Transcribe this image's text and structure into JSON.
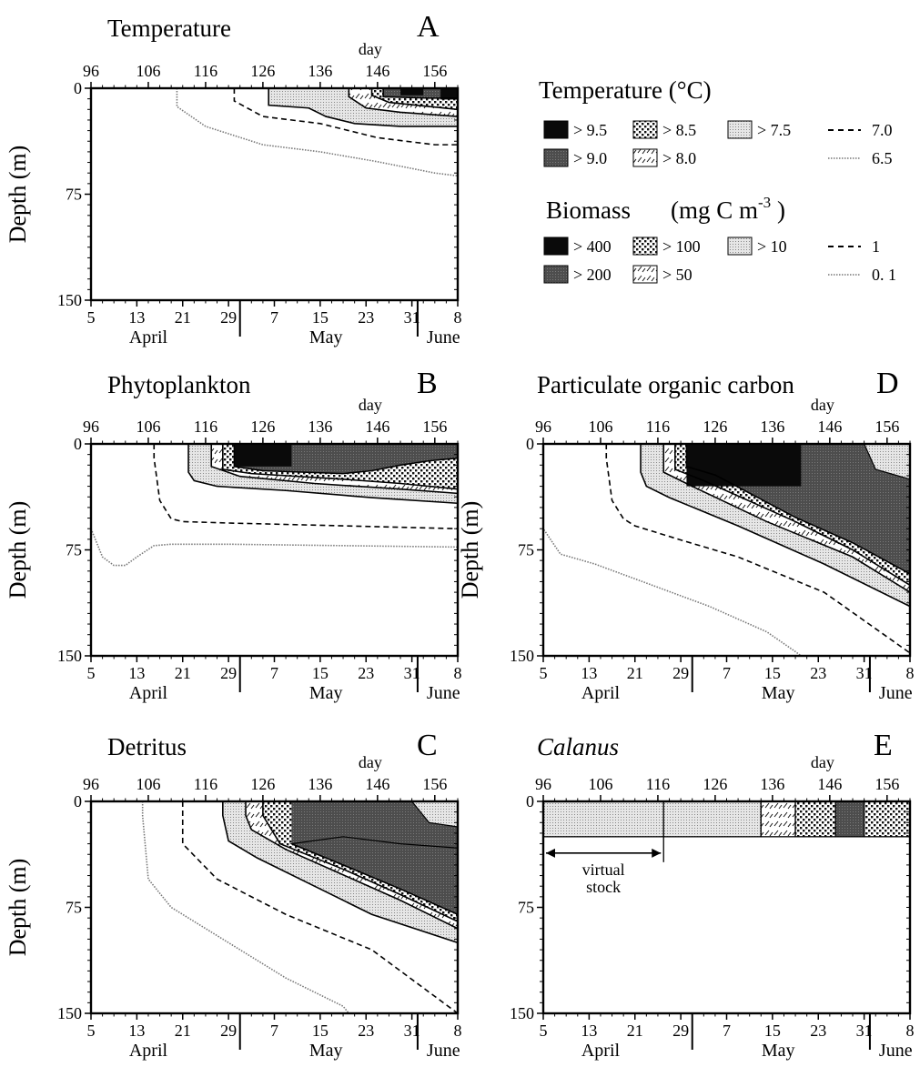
{
  "colors": {
    "ink": "#000000",
    "black": "#0a0a0a",
    "dark": "#555555",
    "medium_dot": "#bbbbbb",
    "light": "#e2e2e2",
    "contour_dotted": "#888888"
  },
  "axes_common": {
    "day_label": "day",
    "day_ticks": [
      96,
      106,
      116,
      126,
      136,
      146,
      156
    ],
    "date_tick_labels": [
      "5",
      "13",
      "21",
      "29",
      "7",
      "15",
      "23",
      "31",
      "8"
    ],
    "months": [
      "April",
      "May",
      "June"
    ],
    "ylabel": "Depth (m)",
    "yticks": [
      0,
      75,
      150
    ],
    "ylim": [
      0,
      150
    ],
    "xlim": [
      96,
      160
    ]
  },
  "legend": {
    "temperature": {
      "title": "Temperature   (°C)",
      "items": [
        {
          "label": "> 9.5",
          "fill": "black"
        },
        {
          "label": "> 8.5",
          "fill": "pattern-dots"
        },
        {
          "label": "> 7.5",
          "fill": "pattern-light"
        },
        {
          "label": "7.0",
          "fill": "dashed-line"
        },
        {
          "label": "> 9.0",
          "fill": "dark"
        },
        {
          "label": "> 8.0",
          "fill": "pattern-ticks"
        },
        {
          "label": "6.5",
          "fill": "dotted-line"
        }
      ]
    },
    "biomass": {
      "title": "Biomass",
      "unit": "(mg C m",
      "unit_exp": "-3",
      "unit_close": " )",
      "items": [
        {
          "label": "> 400",
          "fill": "black"
        },
        {
          "label": "> 100",
          "fill": "pattern-dots"
        },
        {
          "label": "> 10",
          "fill": "pattern-light"
        },
        {
          "label": "1",
          "fill": "dashed-line"
        },
        {
          "label": "> 200",
          "fill": "dark"
        },
        {
          "label": "> 50",
          "fill": "pattern-ticks"
        },
        {
          "label": "0. 1",
          "fill": "dotted-line"
        }
      ]
    }
  },
  "chart_data": [
    {
      "type": "heatmap",
      "panel": "A",
      "title": "Temperature",
      "levels": [
        {
          "name": "> 6.5",
          "boundary": "dotted",
          "fill": "none",
          "start": [
            111,
            0
          ],
          "bottom": [
            [
              111,
              13
            ],
            [
              116,
              27
            ],
            [
              126,
              40
            ],
            [
              136,
              45
            ],
            [
              146,
              52
            ],
            [
              156,
              60
            ],
            [
              160,
              62
            ]
          ]
        },
        {
          "name": "> 7.0",
          "boundary": "dashed",
          "fill": "none",
          "start": [
            121,
            0
          ],
          "bottom": [
            [
              121,
              9
            ],
            [
              126,
              20
            ],
            [
              136,
              25
            ],
            [
              146,
              35
            ],
            [
              156,
              40
            ],
            [
              160,
              40
            ]
          ]
        },
        {
          "name": "> 7.5",
          "boundary": "solid",
          "fill": "light",
          "start": [
            127,
            0
          ],
          "bottom": [
            [
              127,
              12
            ],
            [
              134,
              14
            ],
            [
              137,
              20
            ],
            [
              142,
              25
            ],
            [
              150,
              27
            ],
            [
              160,
              27
            ]
          ]
        },
        {
          "name": "> 8.0",
          "boundary": "solid",
          "fill": "pattern-ticks",
          "start": [
            141,
            0
          ],
          "bottom": [
            [
              141,
              6
            ],
            [
              144,
              14
            ],
            [
              150,
              17
            ],
            [
              160,
              20
            ]
          ]
        },
        {
          "name": "> 8.5",
          "boundary": "solid",
          "fill": "pattern-dots",
          "start": [
            145,
            0
          ],
          "bottom": [
            [
              145,
              5
            ],
            [
              148,
              10
            ],
            [
              160,
              15
            ]
          ]
        },
        {
          "name": "> 9.0",
          "boundary": "solid",
          "fill": "dark",
          "start": [
            147,
            0
          ],
          "bottom": [
            [
              147,
              6
            ],
            [
              155,
              7
            ],
            [
              160,
              7
            ]
          ]
        }
      ],
      "black_patches": [
        [
          150,
          0,
          154,
          5
        ],
        [
          157,
          0,
          160,
          8
        ]
      ]
    },
    {
      "type": "heatmap",
      "panel": "B",
      "title": "Phytoplankton",
      "levels": [
        {
          "name": "> 0.1",
          "boundary": "dotted",
          "fill": "none",
          "start": [
            96,
            33
          ],
          "bottom": [
            [
              96,
              60
            ],
            [
              98,
              80
            ],
            [
              100,
              86
            ],
            [
              102,
              86
            ],
            [
              104,
              80
            ],
            [
              107,
              72
            ],
            [
              110,
              71
            ],
            [
              120,
              71
            ],
            [
              140,
              72
            ],
            [
              160,
              73
            ]
          ]
        },
        {
          "name": "> 1",
          "boundary": "dashed",
          "fill": "none",
          "start": [
            107,
            0
          ],
          "bottom": [
            [
              107,
              10
            ],
            [
              108,
              40
            ],
            [
              110,
              53
            ],
            [
              112,
              55
            ],
            [
              120,
              56
            ],
            [
              140,
              58
            ],
            [
              160,
              60
            ]
          ]
        },
        {
          "name": "> 10",
          "boundary": "solid",
          "fill": "light",
          "start": [
            113,
            0
          ],
          "bottom": [
            [
              113,
              20
            ],
            [
              114,
              26
            ],
            [
              118,
              30
            ],
            [
              130,
              33
            ],
            [
              145,
              38
            ],
            [
              160,
              42
            ]
          ]
        },
        {
          "name": "> 50",
          "boundary": "solid",
          "fill": "pattern-ticks",
          "start": [
            117,
            0
          ],
          "bottom": [
            [
              117,
              16
            ],
            [
              122,
              23
            ],
            [
              135,
              28
            ],
            [
              150,
              32
            ],
            [
              160,
              35
            ]
          ]
        },
        {
          "name": "> 100",
          "boundary": "solid",
          "fill": "pattern-dots",
          "start": [
            119,
            0
          ],
          "bottom": [
            [
              119,
              18
            ],
            [
              124,
              21
            ],
            [
              140,
              25
            ],
            [
              150,
              28
            ],
            [
              160,
              32
            ]
          ]
        },
        {
          "name": "> 200",
          "boundary": "solid",
          "fill": "dark",
          "start": [
            121,
            0
          ],
          "bottom": [
            [
              121,
              16
            ],
            [
              126,
              19
            ],
            [
              140,
              21
            ],
            [
              145,
              19
            ],
            [
              150,
              15
            ],
            [
              155,
              12
            ],
            [
              160,
              10
            ]
          ]
        }
      ],
      "black_patches": [
        [
          121,
          0,
          131,
          16
        ]
      ]
    },
    {
      "type": "heatmap",
      "panel": "C",
      "title": "Detritus",
      "levels": [
        {
          "name": "> 0.1",
          "boundary": "dotted",
          "fill": "none",
          "start": [
            105,
            0
          ],
          "bottom": [
            [
              105,
              10
            ],
            [
              106,
              55
            ],
            [
              110,
              75
            ],
            [
              120,
              100
            ],
            [
              130,
              125
            ],
            [
              140,
              145
            ],
            [
              141,
              150
            ]
          ]
        },
        {
          "name": "> 1",
          "boundary": "dashed",
          "fill": "none",
          "start": [
            112,
            0
          ],
          "bottom": [
            [
              112,
              10
            ],
            [
              112,
              30
            ],
            [
              118,
              55
            ],
            [
              130,
              80
            ],
            [
              145,
              105
            ],
            [
              160,
              150
            ]
          ]
        },
        {
          "name": "> 10",
          "boundary": "solid",
          "fill": "light",
          "start": [
            119,
            0
          ],
          "bottom": [
            [
              119,
              10
            ],
            [
              120,
              28
            ],
            [
              125,
              40
            ],
            [
              135,
              60
            ],
            [
              145,
              80
            ],
            [
              160,
              100
            ]
          ]
        },
        {
          "name": "> 50",
          "boundary": "solid",
          "fill": "pattern-ticks",
          "start": [
            123,
            0
          ],
          "bottom": [
            [
              123,
              10
            ],
            [
              124,
              20
            ],
            [
              130,
              34
            ],
            [
              140,
              52
            ],
            [
              150,
              70
            ],
            [
              160,
              90
            ]
          ]
        },
        {
          "name": "> 100",
          "boundary": "solid",
          "fill": "pattern-dots",
          "start": [
            126,
            0
          ],
          "bottom": [
            [
              126,
              10
            ],
            [
              129,
              30
            ],
            [
              140,
              48
            ],
            [
              150,
              66
            ],
            [
              160,
              85
            ]
          ]
        },
        {
          "name": "> 200",
          "boundary": "solid",
          "fill": "dark",
          "start": [
            131,
            30
          ],
          "bottom": [
            [
              131,
              30
            ],
            [
              140,
              45
            ],
            [
              150,
              62
            ],
            [
              160,
              80
            ]
          ]
        }
      ],
      "dark_top": [
        [
          131,
          30
        ],
        [
          140,
          25
        ],
        [
          150,
          30
        ],
        [
          160,
          33
        ]
      ],
      "light_patch": [
        [
          152,
          0
        ],
        [
          155,
          15
        ],
        [
          160,
          18
        ],
        [
          160,
          0
        ]
      ]
    },
    {
      "type": "heatmap",
      "panel": "D",
      "title": "Particulate organic carbon",
      "levels": [
        {
          "name": "> 0.1",
          "boundary": "dotted",
          "fill": "none",
          "start": [
            96,
            30
          ],
          "bottom": [
            [
              96,
              60
            ],
            [
              99,
              78
            ],
            [
              105,
              85
            ],
            [
              115,
              100
            ],
            [
              125,
              115
            ],
            [
              135,
              133
            ],
            [
              140,
              147
            ],
            [
              141,
              150
            ]
          ]
        },
        {
          "name": "> 1",
          "boundary": "dashed",
          "fill": "none",
          "start": [
            107,
            0
          ],
          "bottom": [
            [
              107,
              10
            ],
            [
              108,
              40
            ],
            [
              110,
              53
            ],
            [
              112,
              58
            ],
            [
              120,
              68
            ],
            [
              130,
              80
            ],
            [
              145,
              105
            ],
            [
              160,
              148
            ]
          ]
        },
        {
          "name": "> 10",
          "boundary": "solid",
          "fill": "light",
          "start": [
            113,
            0
          ],
          "bottom": [
            [
              113,
              20
            ],
            [
              114,
              30
            ],
            [
              118,
              38
            ],
            [
              130,
              58
            ],
            [
              145,
              85
            ],
            [
              160,
              115
            ]
          ]
        },
        {
          "name": "> 50",
          "boundary": "solid",
          "fill": "pattern-ticks",
          "start": [
            117,
            0
          ],
          "bottom": [
            [
              117,
              20
            ],
            [
              122,
              30
            ],
            [
              135,
              55
            ],
            [
              150,
              80
            ],
            [
              160,
              105
            ]
          ]
        },
        {
          "name": "> 100",
          "boundary": "solid",
          "fill": "pattern-dots",
          "start": [
            119,
            0
          ],
          "bottom": [
            [
              119,
              18
            ],
            [
              124,
              26
            ],
            [
              140,
              55
            ],
            [
              150,
              75
            ],
            [
              160,
              100
            ]
          ]
        },
        {
          "name": "> 200",
          "boundary": "solid",
          "fill": "dark",
          "start": [
            121,
            0
          ],
          "bottom": [
            [
              121,
              16
            ],
            [
              126,
              22
            ],
            [
              140,
              52
            ],
            [
              150,
              70
            ],
            [
              160,
              92
            ]
          ]
        }
      ],
      "black_patches": [
        [
          121,
          0,
          141,
          30
        ]
      ],
      "light_patch": [
        [
          152,
          0
        ],
        [
          154,
          18
        ],
        [
          160,
          25
        ],
        [
          160,
          0
        ]
      ]
    },
    {
      "type": "bar",
      "panel": "E",
      "title": "Calanus",
      "layer_depth": 25,
      "segments": [
        {
          "from": 96,
          "to": 117,
          "fill": "light"
        },
        {
          "from": 117,
          "to": 134,
          "fill": "light"
        },
        {
          "from": 134,
          "to": 140,
          "fill": "pattern-ticks"
        },
        {
          "from": 140,
          "to": 147,
          "fill": "pattern-dots"
        },
        {
          "from": 147,
          "to": 152,
          "fill": "dark"
        },
        {
          "from": 152,
          "to": 160,
          "fill": "pattern-dots"
        }
      ],
      "annotation": {
        "line1": "virtual",
        "line2": "stock",
        "from": 96,
        "to": 117
      }
    }
  ]
}
